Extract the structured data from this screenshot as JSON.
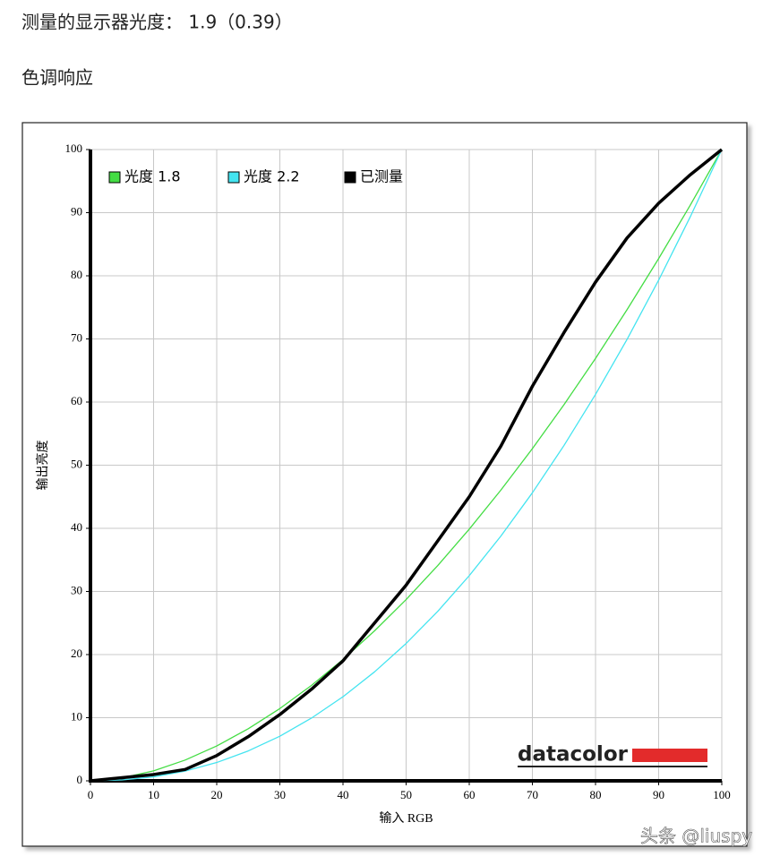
{
  "header": {
    "gamma_line": "测量的显示器光度： 1.9（0.39）",
    "section_title": "色调响应"
  },
  "watermark": "头条 @liuspy",
  "chart_data": {
    "type": "line",
    "logo": "datacolor",
    "x_label": "输入 RGB",
    "y_label": "输出亮度",
    "x": [
      0,
      5,
      10,
      15,
      20,
      25,
      30,
      35,
      40,
      45,
      50,
      55,
      60,
      65,
      70,
      75,
      80,
      85,
      90,
      95,
      100
    ],
    "series": [
      {
        "name": "光度 1.8",
        "color": "#44dd44",
        "width": 1.3,
        "values": [
          0,
          0.46,
          1.58,
          3.29,
          5.52,
          8.25,
          11.45,
          15.11,
          19.22,
          23.76,
          28.72,
          34.09,
          39.87,
          46.05,
          52.62,
          59.58,
          66.92,
          74.64,
          82.73,
          91.18,
          100
        ]
      },
      {
        "name": "光度 2.2",
        "color": "#44e4f0",
        "width": 1.3,
        "values": [
          0,
          0.14,
          0.63,
          1.54,
          2.9,
          4.74,
          7.07,
          9.93,
          13.32,
          17.26,
          21.76,
          26.84,
          32.5,
          38.76,
          45.63,
          53.11,
          61.21,
          69.94,
          79.31,
          89.33,
          100
        ]
      },
      {
        "name": "已测量",
        "color": "#000000",
        "width": 3.5,
        "values": [
          0,
          0.5,
          1,
          1.8,
          4,
          7,
          10.5,
          14.5,
          19,
          25,
          31,
          38,
          45,
          53,
          62.5,
          71,
          79,
          86,
          91.5,
          96,
          100
        ]
      }
    ],
    "xlim": [
      0,
      100
    ],
    "ylim": [
      0,
      100
    ],
    "xticks": [
      0,
      10,
      20,
      30,
      40,
      50,
      60,
      70,
      80,
      90,
      100
    ],
    "yticks": [
      0,
      10,
      20,
      30,
      40,
      50,
      60,
      70,
      80,
      90,
      100
    ],
    "grid": true,
    "legend": "top-left"
  }
}
